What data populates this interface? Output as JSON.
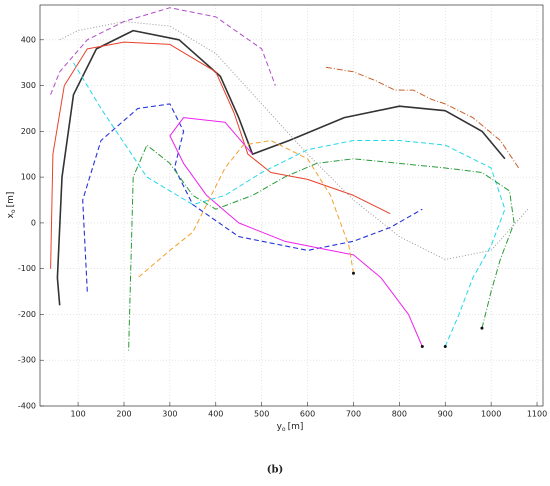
{
  "chart_data": {
    "type": "line",
    "xlabel": {
      "main": "y",
      "sub": "o",
      "unit": "[m]"
    },
    "ylabel": {
      "main": "x",
      "sub": "o",
      "unit": "[m]"
    },
    "caption": "(b)",
    "xlim": [
      17,
      1113
    ],
    "ylim": [
      -400,
      476
    ],
    "xticks": [
      100,
      200,
      300,
      400,
      500,
      600,
      700,
      800,
      900,
      1000,
      1100
    ],
    "yticks": [
      -400,
      -300,
      -200,
      -100,
      0,
      100,
      200,
      300,
      400
    ],
    "grid": true,
    "series": [
      {
        "color": "#333333",
        "linestyle": "solid",
        "width": 1.6,
        "start_marker": false,
        "x": [
          60,
          55,
          65,
          90,
          140,
          220,
          320,
          410,
          450,
          480,
          560,
          680,
          800,
          900,
          980,
          1030
        ],
        "y": [
          -180,
          -120,
          100,
          280,
          380,
          420,
          400,
          320,
          230,
          150,
          180,
          230,
          255,
          245,
          200,
          140
        ]
      },
      {
        "color": "#e8412b",
        "linestyle": "solid",
        "width": 1,
        "start_marker": false,
        "x": [
          40,
          45,
          70,
          120,
          200,
          300,
          400,
          440,
          470,
          520,
          600,
          700,
          780
        ],
        "y": [
          -100,
          150,
          300,
          380,
          395,
          390,
          330,
          240,
          150,
          110,
          95,
          60,
          20
        ]
      },
      {
        "color": "#2233dd",
        "linestyle": "dashed",
        "width": 1.1,
        "start_marker": false,
        "x": [
          120,
          110,
          150,
          230,
          300,
          330,
          310,
          350,
          450,
          600,
          700,
          780,
          850
        ],
        "y": [
          -150,
          50,
          180,
          250,
          260,
          200,
          120,
          40,
          -30,
          -60,
          -40,
          -10,
          30
        ]
      },
      {
        "color": "#ee22ee",
        "linestyle": "solid",
        "width": 1,
        "start_marker": true,
        "x": [
          850,
          820,
          760,
          700,
          650,
          550,
          450,
          380,
          330,
          300,
          330,
          420,
          480
        ],
        "y": [
          -270,
          -200,
          -120,
          -70,
          -60,
          -40,
          0,
          60,
          130,
          190,
          230,
          220,
          150
        ]
      },
      {
        "color": "#f0a030",
        "linestyle": "dashed",
        "width": 1,
        "start_marker": true,
        "x": [
          700,
          690,
          650,
          600,
          520,
          460,
          420,
          380,
          350,
          300,
          230
        ],
        "y": [
          -110,
          -50,
          60,
          140,
          180,
          170,
          120,
          40,
          -20,
          -60,
          -120
        ]
      },
      {
        "color": "#22d8e8",
        "linestyle": "dashed",
        "width": 1,
        "start_marker": true,
        "x": [
          900,
          930,
          960,
          1000,
          1030,
          1000,
          900,
          800,
          700,
          600,
          500,
          420,
          350,
          250,
          150,
          90
        ],
        "y": [
          -270,
          -200,
          -120,
          -50,
          30,
          120,
          170,
          180,
          180,
          160,
          110,
          60,
          40,
          100,
          250,
          350
        ]
      },
      {
        "color": "#2a9a3a",
        "linestyle": "dashdot",
        "width": 1,
        "start_marker": true,
        "x": [
          980,
          1000,
          1020,
          1050,
          1040,
          980,
          900,
          800,
          700,
          620,
          550,
          480,
          400,
          350,
          300,
          250,
          220,
          210
        ],
        "y": [
          -230,
          -150,
          -80,
          0,
          70,
          110,
          120,
          130,
          140,
          130,
          100,
          60,
          30,
          60,
          130,
          170,
          100,
          -280
        ]
      },
      {
        "color": "#b04cc8",
        "linestyle": "dashed",
        "width": 1,
        "start_marker": false,
        "x": [
          40,
          60,
          120,
          200,
          300,
          400,
          500,
          530
        ],
        "y": [
          280,
          330,
          400,
          440,
          470,
          450,
          380,
          300
        ]
      },
      {
        "color": "#c8602a",
        "linestyle": "dashdot",
        "width": 1,
        "start_marker": false,
        "x": [
          640,
          700,
          750,
          790,
          830,
          870,
          900,
          960,
          1020,
          1060
        ],
        "y": [
          340,
          330,
          310,
          290,
          290,
          270,
          260,
          230,
          180,
          120
        ]
      },
      {
        "color": "#999999",
        "linestyle": "dotted",
        "width": 1,
        "start_marker": false,
        "x": [
          60,
          100,
          200,
          300,
          400,
          500,
          600,
          700,
          800,
          900,
          1000,
          1080
        ],
        "y": [
          400,
          420,
          440,
          430,
          370,
          260,
          150,
          50,
          -30,
          -80,
          -60,
          30
        ]
      }
    ]
  }
}
